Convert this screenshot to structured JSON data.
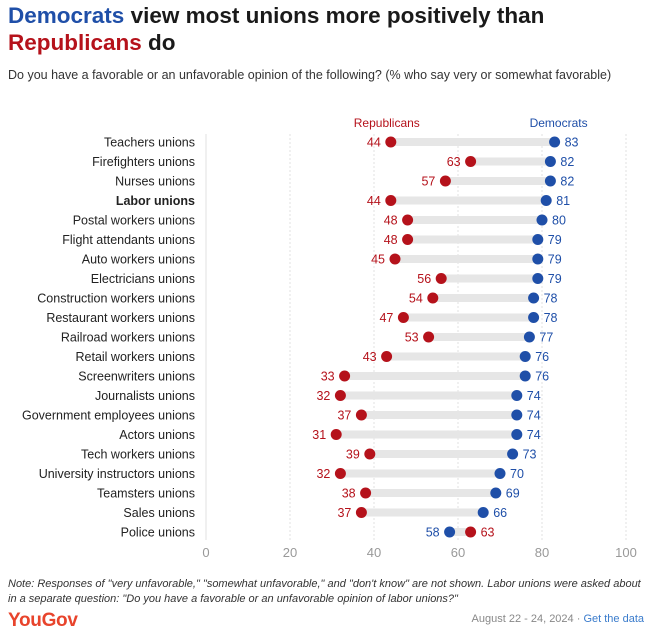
{
  "title": {
    "part1": "Democrats",
    "part2": " view most unions more positively than ",
    "part3": "Republicans",
    "part4": " do"
  },
  "subtitle": "Do you have a favorable or an unfavorable opinion of the following? (% who say very or somewhat favorable)",
  "colors": {
    "democrats": "#1f4fa8",
    "republicans": "#b5121b",
    "bar": "#e6e6e6",
    "grid": "#e2e2e2"
  },
  "chart_data": {
    "type": "dumbbell",
    "xlim": [
      0,
      100
    ],
    "xticks": [
      "0",
      "20",
      "40",
      "60",
      "80",
      "100"
    ],
    "highlight": "Labor unions",
    "legend": {
      "republicans": "Republicans",
      "democrats": "Democrats"
    },
    "categories": [
      "Teachers unions",
      "Firefighters unions",
      "Nurses unions",
      "Labor unions",
      "Postal workers unions",
      "Flight attendants unions",
      "Auto workers unions",
      "Electricians unions",
      "Construction workers unions",
      "Restaurant workers unions",
      "Railroad workers unions",
      "Retail workers unions",
      "Screenwriters unions",
      "Journalists unions",
      "Government employees unions",
      "Actors unions",
      "Tech workers unions",
      "University instructors unions",
      "Teamsters unions",
      "Sales unions",
      "Police unions"
    ],
    "series": [
      {
        "name": "Republicans",
        "values": [
          44,
          63,
          57,
          44,
          48,
          48,
          45,
          56,
          54,
          47,
          53,
          43,
          33,
          32,
          37,
          31,
          39,
          32,
          38,
          37,
          63
        ]
      },
      {
        "name": "Democrats",
        "values": [
          83,
          82,
          82,
          81,
          80,
          79,
          79,
          79,
          78,
          78,
          77,
          76,
          76,
          74,
          74,
          74,
          73,
          70,
          69,
          66,
          58
        ]
      }
    ]
  },
  "note": "Note: Responses of \"very unfavorable,\" \"somewhat unfavorable,\" and \"don't know\" are not shown. Labor unions were asked about in a separate question: \"Do you have a favorable or an unfavorable opinion of labor unions?\"",
  "footer": {
    "logo": "YouGov",
    "date": "August 22 - 24, 2024 · ",
    "link": "Get the data"
  }
}
